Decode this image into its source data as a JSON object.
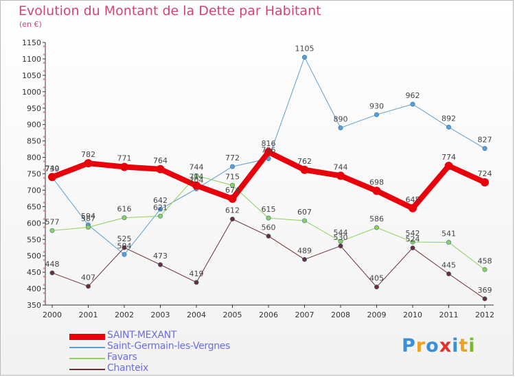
{
  "title": "Evolution du Montant de la Dette par Habitant",
  "subtitle": "(en €)",
  "logo": "Proxiti",
  "colors": {
    "title": "#d04574",
    "axis": "#333333",
    "grid_dash": "#d23c3c",
    "legend_text": "#6d6de0"
  },
  "chart_data": {
    "type": "line",
    "x": [
      "2000",
      "2001",
      "2002",
      "2003",
      "2004",
      "2005",
      "2006",
      "2007",
      "2008",
      "2009",
      "2010",
      "2011",
      "2012"
    ],
    "ylim": [
      350,
      1150
    ],
    "yticks": [
      350,
      400,
      450,
      500,
      550,
      600,
      650,
      700,
      750,
      800,
      850,
      900,
      950,
      1000,
      1050,
      1100,
      1150
    ],
    "legend_position": "bottom-left",
    "series": [
      {
        "name": "SAINT-MEXANT",
        "color": "#e8000b",
        "width": 8,
        "values": [
          740,
          782,
          771,
          764,
          714,
          674,
          816,
          762,
          744,
          698,
          645,
          774,
          724
        ]
      },
      {
        "name": "Saint-Germain-les-Vergnes",
        "color": "#5a9fd4",
        "width": 1,
        "values": [
          739,
          594,
          504,
          642,
          704,
          772,
          796,
          1105,
          890,
          930,
          962,
          892,
          827
        ]
      },
      {
        "name": "Favars",
        "color": "#8ed05a",
        "width": 1,
        "values": [
          577,
          587,
          616,
          621,
          744,
          715,
          615,
          607,
          544,
          586,
          542,
          541,
          458
        ]
      },
      {
        "name": "Chanteix",
        "color": "#6b2f2f",
        "width": 1,
        "values": [
          448,
          407,
          525,
          473,
          419,
          612,
          560,
          489,
          530,
          405,
          524,
          445,
          369
        ]
      }
    ]
  }
}
